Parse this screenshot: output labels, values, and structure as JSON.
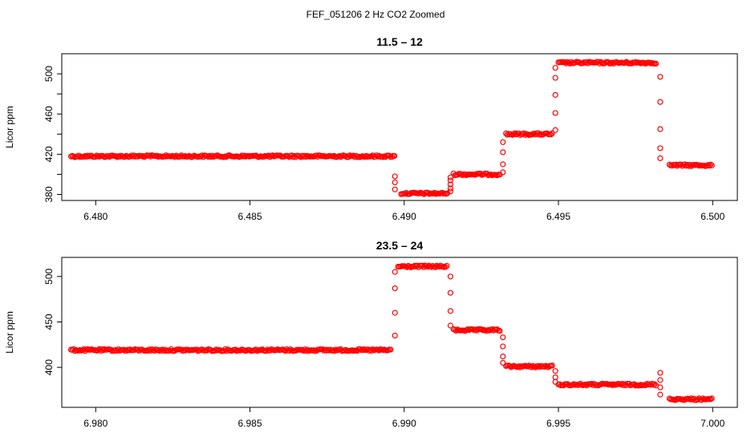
{
  "figure": {
    "title": "FEF_051206  2 Hz CO2 Zoomed",
    "marker_color": "#ff0000"
  },
  "chart_data": [
    {
      "type": "scatter",
      "title": "11.5 – 12",
      "xlabel": "",
      "ylabel": "Licor ppm",
      "xlim": [
        6.4789,
        6.5008
      ],
      "ylim": [
        374,
        520
      ],
      "xticks": [
        6.48,
        6.485,
        6.49,
        6.495,
        6.5
      ],
      "xtick_labels": [
        "6.480",
        "6.485",
        "6.490",
        "6.495",
        "6.500"
      ],
      "yticks": [
        380,
        400,
        420,
        440,
        460,
        480,
        500
      ],
      "ytick_labels": [
        "380",
        "",
        "420",
        "",
        "460",
        "",
        "500"
      ],
      "grid": false,
      "marker": "open-circle",
      "color": "#ff0000",
      "segments": [
        {
          "x_start": 6.4792,
          "x_end": 6.4897,
          "y": 418
        },
        {
          "x_start": 6.4899,
          "x_end": 6.4914,
          "y": 381
        },
        {
          "x_start": 6.4916,
          "x_end": 6.4931,
          "y": 400
        },
        {
          "x_start": 6.4933,
          "x_end": 6.4948,
          "y": 440
        },
        {
          "x_start": 6.495,
          "x_end": 6.4982,
          "y": 511
        },
        {
          "x_start": 6.4986,
          "x_end": 6.5,
          "y": 409
        }
      ],
      "transitions": [
        {
          "x": 6.4897,
          "y": [
            398,
            392,
            385
          ]
        },
        {
          "x": 6.4915,
          "y": [
            383,
            386,
            390,
            394,
            397
          ]
        },
        {
          "x": 6.4932,
          "y": [
            402,
            410,
            422,
            432
          ]
        },
        {
          "x": 6.4949,
          "y": [
            444,
            461,
            479,
            496,
            506
          ]
        },
        {
          "x": 6.4983,
          "y": [
            497,
            472,
            445,
            426,
            416
          ]
        }
      ]
    },
    {
      "type": "scatter",
      "title": "23.5 – 24",
      "xlabel": "",
      "ylabel": "Licor ppm",
      "xlim": [
        6.9789,
        7.0008
      ],
      "ylim": [
        356,
        521
      ],
      "xticks": [
        6.98,
        6.985,
        6.99,
        6.995,
        7.0
      ],
      "xtick_labels": [
        "6.980",
        "6.985",
        "6.990",
        "6.995",
        "7.000"
      ],
      "yticks": [
        400,
        450,
        500
      ],
      "ytick_labels": [
        "400",
        "450",
        "500"
      ],
      "grid": false,
      "marker": "open-circle",
      "color": "#ff0000",
      "segments": [
        {
          "x_start": 6.9792,
          "x_end": 6.9896,
          "y": 419
        },
        {
          "x_start": 6.9898,
          "x_end": 6.9914,
          "y": 511
        },
        {
          "x_start": 6.9916,
          "x_end": 6.9931,
          "y": 441
        },
        {
          "x_start": 6.9933,
          "x_end": 6.9948,
          "y": 401
        },
        {
          "x_start": 6.995,
          "x_end": 6.9982,
          "y": 381
        },
        {
          "x_start": 6.9986,
          "x_end": 7.0,
          "y": 365
        }
      ],
      "transitions": [
        {
          "x": 6.9897,
          "y": [
            435,
            460,
            487,
            505
          ]
        },
        {
          "x": 6.9915,
          "y": [
            500,
            482,
            462,
            446
          ]
        },
        {
          "x": 6.9932,
          "y": [
            433,
            423,
            412,
            405
          ]
        },
        {
          "x": 6.9949,
          "y": [
            396,
            389,
            384
          ]
        },
        {
          "x": 6.9983,
          "y": [
            394,
            386,
            378,
            370
          ]
        }
      ]
    }
  ]
}
